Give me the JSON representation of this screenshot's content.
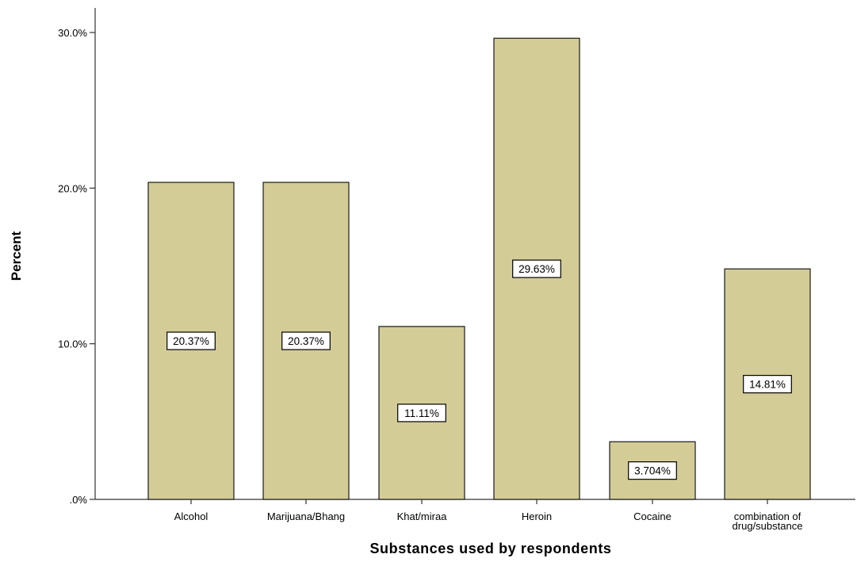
{
  "chart_data": {
    "type": "bar",
    "title": "",
    "xlabel": "Substances used by respondents",
    "ylabel": "Percent",
    "categories": [
      "Alcohol",
      "Marijuana/Bhang",
      "Khat/miraa",
      "Heroin",
      "Cocaine",
      "combination of drug/substance"
    ],
    "category_lines": [
      [
        "Alcohol"
      ],
      [
        "Marijuana/Bhang"
      ],
      [
        "Khat/miraa"
      ],
      [
        "Heroin"
      ],
      [
        "Cocaine"
      ],
      [
        "combination of",
        "drug/substance"
      ]
    ],
    "values": [
      20.37,
      20.37,
      11.11,
      29.63,
      3.704,
      14.81
    ],
    "data_labels": [
      "20.37%",
      "20.37%",
      "11.11%",
      "29.63%",
      "3.704%",
      "14.81%"
    ],
    "yticks": [
      0,
      10,
      20,
      30
    ],
    "ytick_labels": [
      ".0%",
      "10.0%",
      "20.0%",
      "30.0%"
    ],
    "ylim": [
      0,
      30
    ],
    "grid": false,
    "bar_color": "#d3cc96",
    "bar_edge_color": "#1a1a1a"
  }
}
